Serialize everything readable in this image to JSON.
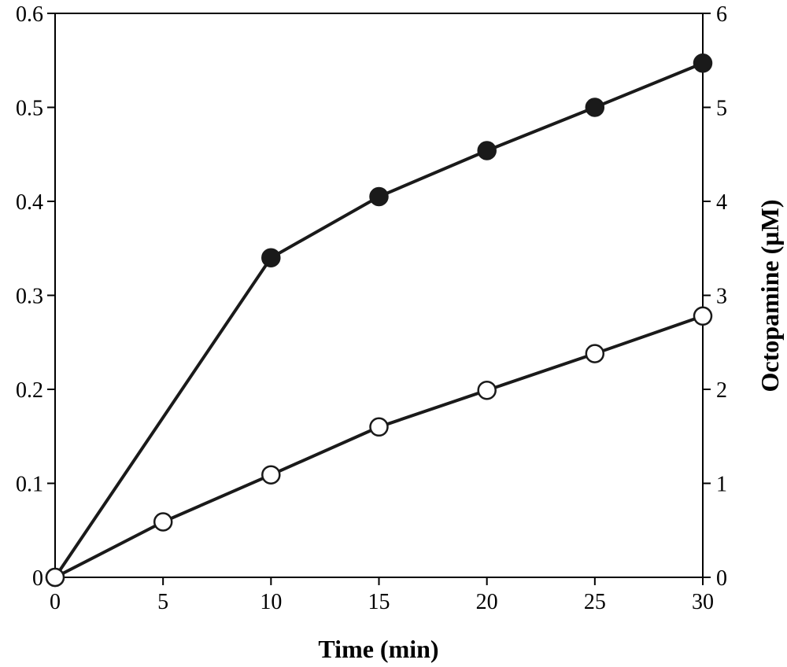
{
  "chart_data": {
    "type": "line",
    "title": "",
    "xlabel": "Time (min)",
    "ylabel_left": "",
    "ylabel_right": "Octopamine (µM)",
    "xlim": [
      0,
      30
    ],
    "ylim_left": [
      0,
      0.6
    ],
    "ylim_right": [
      0,
      6
    ],
    "x_ticks": [
      "0",
      "5",
      "10",
      "15",
      "20",
      "25",
      "30"
    ],
    "left_ticks": [
      "0",
      "0.1",
      "0.2",
      "0.3",
      "0.4",
      "0.5",
      "0.6"
    ],
    "right_ticks": [
      "0",
      "1",
      "2",
      "3",
      "4",
      "5",
      "6"
    ],
    "grid": false,
    "series": [
      {
        "name": "filled",
        "marker": "filled-circle",
        "axis": "left",
        "x": [
          0,
          10,
          15,
          20,
          25,
          30
        ],
        "values": [
          0,
          0.34,
          0.405,
          0.454,
          0.5,
          0.547
        ]
      },
      {
        "name": "open",
        "marker": "open-circle",
        "axis": "left",
        "x": [
          0,
          5,
          10,
          15,
          20,
          25,
          30
        ],
        "values": [
          0,
          0.059,
          0.109,
          0.16,
          0.199,
          0.238,
          0.278
        ]
      }
    ]
  }
}
